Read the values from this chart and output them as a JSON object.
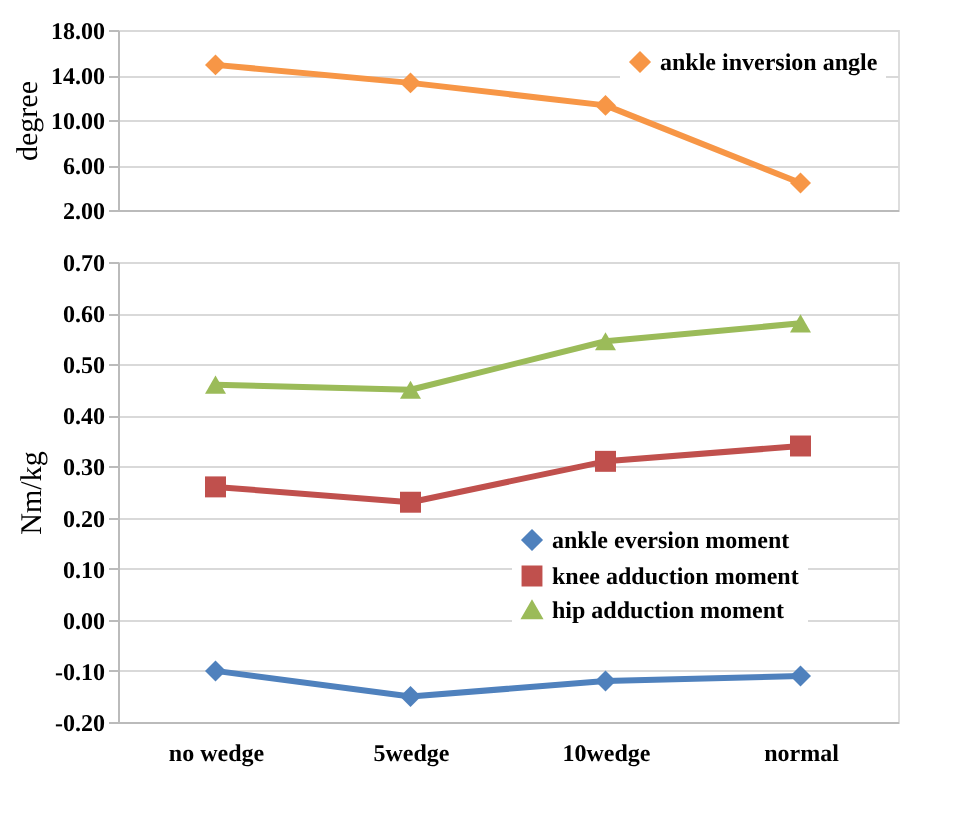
{
  "chart_data": [
    {
      "type": "line",
      "ylabel": "degree",
      "categories": [
        null,
        null,
        null,
        null
      ],
      "series": [
        {
          "name": "ankle inversion angle",
          "color": "#f79646",
          "marker": "diamond",
          "values": [
            14.9,
            13.3,
            11.3,
            4.4
          ]
        }
      ],
      "ylim": [
        2,
        18
      ],
      "yticks": [
        {
          "value": 2,
          "label": "2.00"
        },
        {
          "value": 6,
          "label": "6.00"
        },
        {
          "value": 10,
          "label": "10.00"
        },
        {
          "value": 14,
          "label": "14.00"
        },
        {
          "value": 18,
          "label": "18.00"
        }
      ],
      "grid": "y",
      "legend": "top right",
      "tick_labels": "y",
      "line_style": "solid"
    },
    {
      "type": "line",
      "ylabel": "Nm/kg",
      "categories": [
        "no wedge",
        "5wedge",
        "10wedge",
        "normal"
      ],
      "series": [
        {
          "name": "ankle eversion moment",
          "color": "#4f81bd",
          "marker": "diamond",
          "values": [
            -0.1,
            -0.15,
            -0.12,
            -0.11
          ]
        },
        {
          "name": "knee adduction moment",
          "color": "#c0504d",
          "marker": "square",
          "values": [
            0.26,
            0.23,
            0.31,
            0.34
          ]
        },
        {
          "name": "hip adduction moment",
          "color": "#9bbb59",
          "marker": "triangle",
          "values": [
            0.46,
            0.45,
            0.545,
            0.58
          ]
        }
      ],
      "ylim": [
        -0.2,
        0.7
      ],
      "yticks": [
        {
          "value": -0.2,
          "label": "-0.20"
        },
        {
          "value": -0.1,
          "label": "-0.10"
        },
        {
          "value": 0,
          "label": "0.00"
        },
        {
          "value": 0.1,
          "label": "0.10"
        },
        {
          "value": 0.2,
          "label": "0.20"
        },
        {
          "value": 0.3,
          "label": "0.30"
        },
        {
          "value": 0.4,
          "label": "0.40"
        },
        {
          "value": 0.5,
          "label": "0.50"
        },
        {
          "value": 0.6,
          "label": "0.60"
        },
        {
          "value": 0.7,
          "label": "0.70"
        }
      ],
      "grid": "y",
      "legend": "bottom right",
      "line_style": "solid"
    }
  ]
}
